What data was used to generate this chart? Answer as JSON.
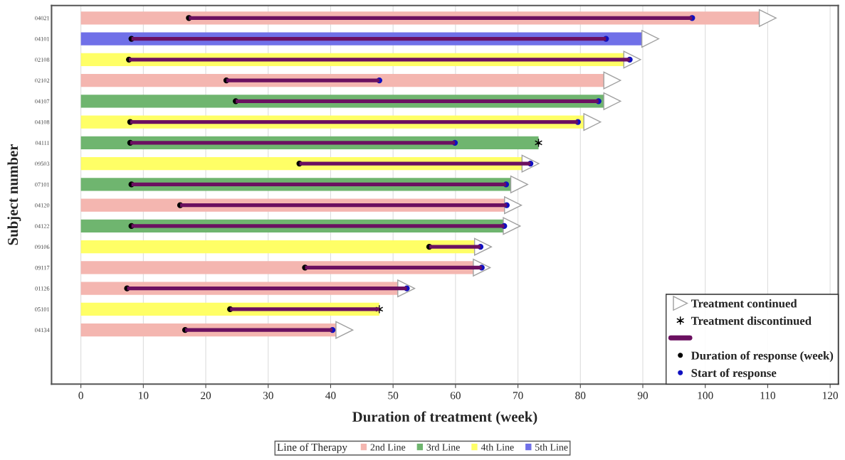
{
  "chart_data": {
    "type": "bar",
    "orientation": "horizontal",
    "xlabel": "Duration of treatment (week)",
    "ylabel": "Subject number",
    "categories": [
      "04021",
      "04101",
      "02108",
      "02102",
      "04107",
      "04108",
      "04111",
      "09503",
      "07101",
      "04120",
      "04122",
      "09106",
      "09117",
      "01126",
      "05101",
      "04134"
    ],
    "series": [
      {
        "name": "2nd Line",
        "color": "#f4b6b0",
        "values": [
          108.7,
          null,
          null,
          83.8,
          null,
          null,
          null,
          null,
          null,
          67.9,
          null,
          null,
          62.9,
          50.8,
          null,
          40.9
        ]
      },
      {
        "name": "3rd Line",
        "color": "#6fb56f",
        "values": [
          null,
          null,
          null,
          null,
          83.8,
          null,
          73.3,
          null,
          68.9,
          null,
          67.7,
          null,
          null,
          null,
          null,
          null
        ]
      },
      {
        "name": "4th Line",
        "color": "#ffff66",
        "values": [
          null,
          null,
          87.0,
          null,
          null,
          80.6,
          null,
          70.7,
          null,
          null,
          null,
          63.1,
          null,
          null,
          47.8,
          null
        ]
      },
      {
        "name": "5th Line",
        "color": "#7070e8",
        "values": [
          null,
          89.9,
          null,
          null,
          null,
          null,
          null,
          null,
          null,
          null,
          null,
          null,
          null,
          null,
          null,
          null
        ]
      },
      {
        "color": "#6b1060",
        "base": [
          17.3,
          8.1,
          7.7,
          23.3,
          24.8,
          7.9,
          7.9,
          35.0,
          8.1,
          15.9,
          8.1,
          55.8,
          35.9,
          7.4,
          23.9,
          16.7
        ],
        "values": [
          80.6,
          76.0,
          80.2,
          24.5,
          58.1,
          71.7,
          52.0,
          37.0,
          60.0,
          52.3,
          59.7,
          8.2,
          28.3,
          44.8,
          23.9,
          23.6
        ]
      },
      {
        "type": "scatter",
        "name": "Treatment continued",
        "marker": "triangle",
        "color": "#a0a0a0",
        "x": [
          "04021",
          "04101",
          "02108",
          "02102",
          "04107",
          "04108",
          "09503",
          "07101",
          "04120",
          "04122",
          "09106",
          "09117",
          "01126",
          "04134"
        ],
        "values": [
          110.0,
          91.2,
          88.3,
          85.1,
          85.1,
          81.9,
          72.0,
          70.2,
          69.2,
          69.0,
          64.4,
          64.2,
          52.1,
          42.2
        ]
      },
      {
        "type": "scatter",
        "name": "Treatment discontinued",
        "marker": "cross",
        "color": "#000000",
        "x": [
          "04111",
          "05101"
        ],
        "values": [
          73.3,
          47.8
        ]
      },
      {
        "type": "scatter",
        "name": "Duration of response (week)",
        "marker": "circle",
        "color": "#000000",
        "x": [
          "04021",
          "04101",
          "02108",
          "02102",
          "04107",
          "04108",
          "04111",
          "09503",
          "07101",
          "04120",
          "04122",
          "09106",
          "09117",
          "01126",
          "05101",
          "04134"
        ],
        "values": [
          17.3,
          8.1,
          7.7,
          23.3,
          24.8,
          7.9,
          7.9,
          35.0,
          8.1,
          15.9,
          8.1,
          55.8,
          35.9,
          7.4,
          23.9,
          16.7
        ]
      },
      {
        "type": "scatter",
        "name": "Start of response",
        "marker": "circle",
        "color": "#1010c0",
        "x": [
          "04021",
          "04101",
          "02108",
          "02102",
          "04107",
          "04108",
          "04111",
          "09503",
          "07101",
          "04120",
          "04122",
          "09106",
          "09117",
          "01126",
          "04134"
        ],
        "values": [
          97.9,
          84.1,
          87.9,
          47.8,
          82.9,
          79.6,
          59.9,
          72.0,
          68.1,
          68.2,
          67.8,
          64.0,
          64.2,
          52.2,
          40.3
        ]
      }
    ],
    "legend_title": "Line of Therapy",
    "legend": "bottom right",
    "xlim": [
      -4.7,
      121.3
    ],
    "xticks": [
      0,
      10,
      20,
      30,
      40,
      50,
      60,
      70,
      80,
      90,
      100,
      110,
      120
    ],
    "grid": "x"
  }
}
